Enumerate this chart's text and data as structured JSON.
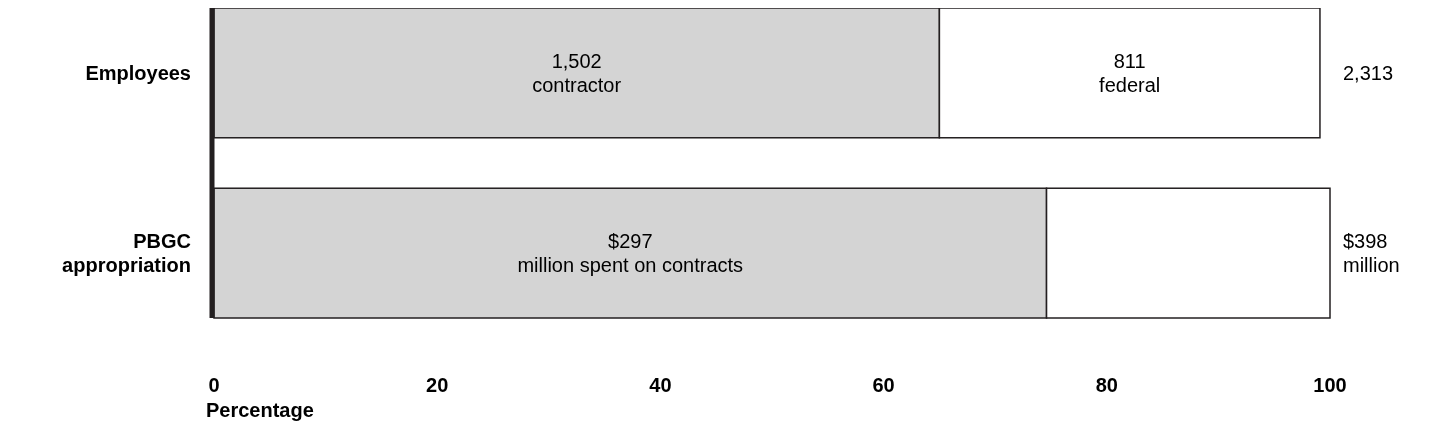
{
  "chart_data": {
    "type": "bar",
    "orientation": "horizontal",
    "stacked": true,
    "categories": [
      "Employees",
      "PBGC\nappropriation"
    ],
    "series": [
      {
        "color": "#d4d4d4",
        "values": [
          65,
          74.6
        ]
      },
      {
        "color": "#ffffff",
        "values": [
          34.1,
          25.4
        ]
      }
    ],
    "annotations": [
      "1,502\ncontractor",
      "811\nfederal",
      "$297\nmillion spent on contracts",
      {
        "text": "2,313",
        "x": 99.1,
        "y": "Employees"
      },
      {
        "text": "$398\nmillion",
        "x": 100,
        "y": "PBGC\nappropriation"
      }
    ],
    "xlim": [
      0,
      100
    ],
    "xticks": [
      0,
      20,
      40,
      60,
      80,
      100
    ],
    "xlabel": "Percentage",
    "grid": false,
    "legend": false
  }
}
